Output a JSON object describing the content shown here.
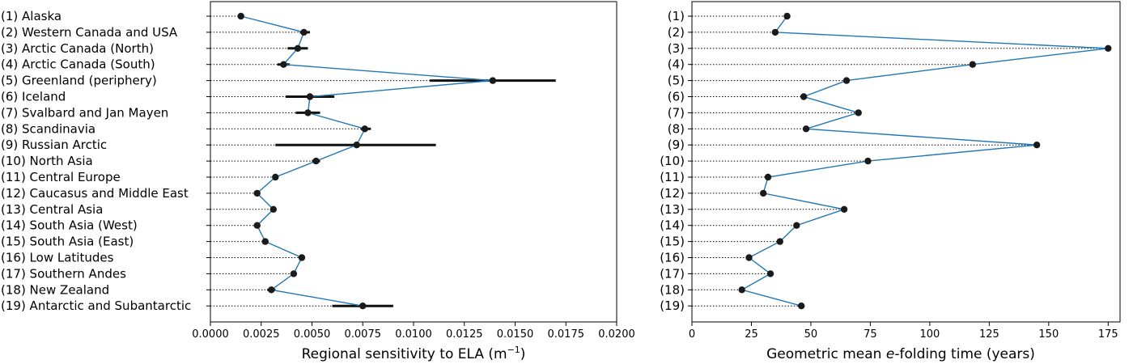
{
  "chart_data": [
    {
      "type": "scatter",
      "categories": [
        "(1) Alaska",
        "(2) Western Canada and USA",
        "(3) Arctic Canada (North)",
        "(4) Arctic Canada (South)",
        "(5) Greenland (periphery)",
        "(6) Iceland",
        "(7) Svalbard and Jan Mayen",
        "(8) Scandinavia",
        "(9) Russian Arctic",
        "(10) North Asia",
        "(11) Central Europe",
        "(12) Caucasus and Middle East",
        "(13) Central Asia",
        "(14) South Asia (West)",
        "(15) South Asia (East)",
        "(16) Low Latitudes",
        "(17) Southern Andes",
        "(18) New Zealand",
        "(19) Antarctic and Subantarctic"
      ],
      "values": [
        0.0015,
        0.0046,
        0.0043,
        0.0036,
        0.0139,
        0.0049,
        0.0048,
        0.0076,
        0.0072,
        0.0052,
        0.0032,
        0.0023,
        0.0031,
        0.0023,
        0.0027,
        0.0045,
        0.0041,
        0.003,
        0.0075
      ],
      "err_low": [
        null,
        0.0044,
        0.0038,
        0.0033,
        0.0108,
        0.0037,
        0.0042,
        0.0074,
        0.0032,
        0.005,
        null,
        null,
        null,
        null,
        null,
        null,
        null,
        0.0028,
        0.006
      ],
      "err_high": [
        null,
        0.0049,
        0.0048,
        0.0039,
        0.017,
        0.0061,
        0.0054,
        0.0079,
        0.0111,
        0.0054,
        null,
        null,
        null,
        null,
        null,
        null,
        null,
        0.0032,
        0.009
      ],
      "xlabel_main": "Regional sensitivity to ELA (m",
      "xlabel_sup": "−1",
      "xlabel_end": ")",
      "xlim": [
        0.0,
        0.02
      ],
      "xticks": [
        "0.0000",
        "0.0025",
        "0.0050",
        "0.0075",
        "0.0100",
        "0.0125",
        "0.0150",
        "0.0175",
        "0.0200"
      ],
      "line_color": "#1f77b4",
      "marker_color": "#1a1a1a"
    },
    {
      "type": "scatter",
      "categories": [
        "(1)",
        "(2)",
        "(3)",
        "(4)",
        "(5)",
        "(6)",
        "(7)",
        "(8)",
        "(9)",
        "(10)",
        "(11)",
        "(12)",
        "(13)",
        "(14)",
        "(15)",
        "(16)",
        "(17)",
        "(18)",
        "(19)"
      ],
      "values": [
        40,
        35,
        175,
        118,
        65,
        47,
        70,
        48,
        145,
        74,
        32,
        30,
        64,
        44,
        37,
        24,
        33,
        21,
        46
      ],
      "xlabel_main": "Geometric mean ",
      "xlabel_italic": "e",
      "xlabel_end": "-folding time (years)",
      "xlim": [
        0,
        180
      ],
      "xticks": [
        "0",
        "25",
        "50",
        "75",
        "100",
        "125",
        "150",
        "175"
      ],
      "line_color": "#1f77b4",
      "marker_color": "#1a1a1a"
    }
  ]
}
